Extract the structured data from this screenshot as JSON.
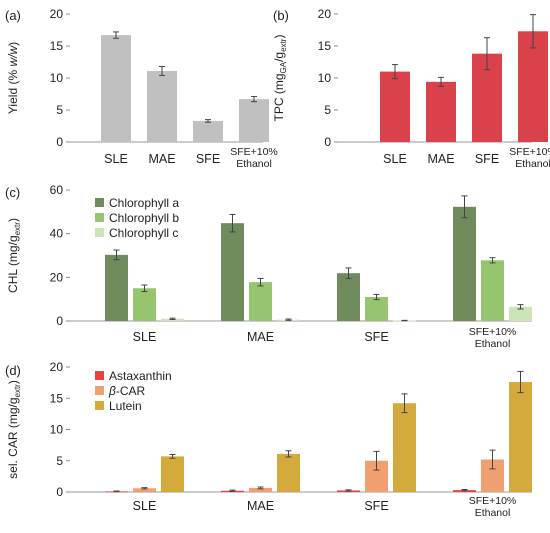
{
  "chart_data": [
    {
      "panel_label": "(a)",
      "type": "bar",
      "categories": [
        "SLE",
        "MAE",
        "SFE",
        "SFE+10% Ethanol"
      ],
      "category_lines": [
        [
          "SLE"
        ],
        [
          "MAE"
        ],
        [
          "SFE"
        ],
        [
          "SFE+10%",
          "Ethanol"
        ]
      ],
      "series": [
        {
          "values": [
            16.7,
            11.1,
            3.3,
            6.7
          ],
          "errors": [
            0.5,
            0.7,
            0.2,
            0.4
          ],
          "color": "#c0c0c0"
        }
      ],
      "ylabel": "Yield (% w/w)",
      "ylim": [
        0,
        20
      ],
      "yticks": [
        0,
        5,
        10,
        15,
        20
      ],
      "grid": false
    },
    {
      "panel_label": "(b)",
      "type": "bar",
      "categories": [
        "SLE",
        "MAE",
        "SFE",
        "SFE+10% Ethanol"
      ],
      "category_lines": [
        [
          "SLE"
        ],
        [
          "MAE"
        ],
        [
          "SFE"
        ],
        [
          "SFE+10%",
          "Ethanol"
        ]
      ],
      "series": [
        {
          "values": [
            11.0,
            9.4,
            13.8,
            17.3
          ],
          "errors": [
            1.1,
            0.7,
            2.5,
            2.6
          ],
          "color": "#d9414b"
        }
      ],
      "ylabel": "TPC (mgGA/gextr)",
      "ylim": [
        0,
        20
      ],
      "yticks": [
        0,
        5,
        10,
        15,
        20
      ],
      "grid": false
    },
    {
      "panel_label": "(c)",
      "type": "bar",
      "categories": [
        "SLE",
        "MAE",
        "SFE",
        "SFE+10% Ethanol"
      ],
      "category_lines": [
        [
          "SLE"
        ],
        [
          "MAE"
        ],
        [
          "SFE"
        ],
        [
          "SFE+10%",
          "Ethanol"
        ]
      ],
      "series": [
        {
          "name": "Chlorophyll a",
          "values": [
            30.3,
            44.8,
            21.9,
            52.3
          ],
          "errors": [
            2.2,
            4.0,
            2.4,
            5.0
          ],
          "color": "#6f8a5b"
        },
        {
          "name": "Chlorophyll b",
          "values": [
            15.0,
            17.8,
            11.0,
            27.8
          ],
          "errors": [
            1.5,
            1.7,
            1.2,
            1.2
          ],
          "color": "#97c46e"
        },
        {
          "name": "Chlorophyll c",
          "values": [
            1.0,
            0.6,
            0.2,
            6.5
          ],
          "errors": [
            0.3,
            0.3,
            0.1,
            1.0
          ],
          "color": "#cde4b8"
        }
      ],
      "ylabel": "CHL (mg/gextr)",
      "ylim": [
        0,
        60
      ],
      "yticks": [
        0,
        20,
        40,
        60
      ],
      "legend_position": "top-left",
      "grid": false
    },
    {
      "panel_label": "(d)",
      "type": "bar",
      "categories": [
        "SLE",
        "MAE",
        "SFE",
        "SFE+10% Ethanol"
      ],
      "category_lines": [
        [
          "SLE"
        ],
        [
          "MAE"
        ],
        [
          "SFE"
        ],
        [
          "SFE+10%",
          "Ethanol"
        ]
      ],
      "series": [
        {
          "name": "Astaxanthin",
          "values": [
            0.1,
            0.2,
            0.25,
            0.3
          ],
          "errors": [
            0.05,
            0.1,
            0.1,
            0.1
          ],
          "color": "#e8423f"
        },
        {
          "name": "β-CAR",
          "values": [
            0.6,
            0.65,
            5.0,
            5.2
          ],
          "errors": [
            0.1,
            0.15,
            1.5,
            1.5
          ],
          "color": "#f0a070"
        },
        {
          "name": "Lutein",
          "values": [
            5.7,
            6.1,
            14.2,
            17.6
          ],
          "errors": [
            0.3,
            0.5,
            1.5,
            1.7
          ],
          "color": "#d4aa3c"
        }
      ],
      "ylabel": "sel. CAR (mg/gextr)",
      "ylim": [
        0,
        20
      ],
      "yticks": [
        0,
        5,
        10,
        15,
        20
      ],
      "legend_position": "top-left",
      "grid": false
    }
  ]
}
